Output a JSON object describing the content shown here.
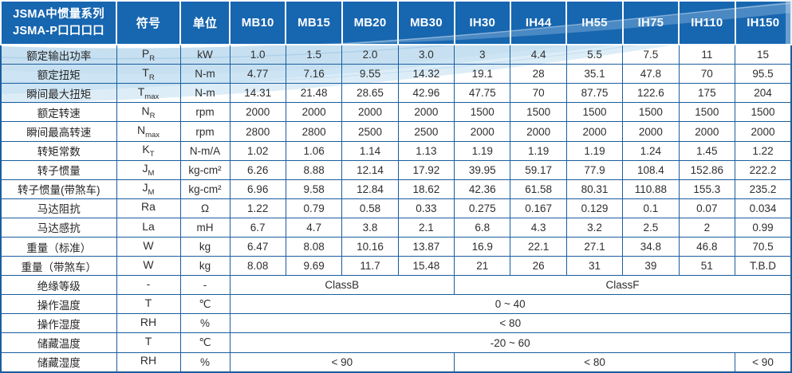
{
  "table": {
    "title_line1": "JSMA中惯量系列",
    "title_line2": "JSMA-P口口口口",
    "col_symbol": "符号",
    "col_unit": "单位",
    "models": [
      "MB10",
      "MB15",
      "MB20",
      "MB30",
      "IH30",
      "IH44",
      "IH55",
      "IH75",
      "IH110",
      "IH150"
    ],
    "rows": [
      {
        "label": "额定输出功率",
        "sym": "P",
        "sub": "R",
        "unit": "kW",
        "values": [
          "1.0",
          "1.5",
          "2.0",
          "3.0",
          "3",
          "4.4",
          "5.5",
          "7.5",
          "11",
          "15"
        ]
      },
      {
        "label": "额定扭矩",
        "sym": "T",
        "sub": "R",
        "unit": "N-m",
        "values": [
          "4.77",
          "7.16",
          "9.55",
          "14.32",
          "19.1",
          "28",
          "35.1",
          "47.8",
          "70",
          "95.5"
        ]
      },
      {
        "label": "瞬间最大扭矩",
        "sym": "T",
        "sub": "max",
        "unit": "N-m",
        "values": [
          "14.31",
          "21.48",
          "28.65",
          "42.96",
          "47.75",
          "70",
          "87.75",
          "122.6",
          "175",
          "204"
        ]
      },
      {
        "label": "额定转速",
        "sym": "N",
        "sub": "R",
        "unit": "rpm",
        "values": [
          "2000",
          "2000",
          "2000",
          "2000",
          "1500",
          "1500",
          "1500",
          "1500",
          "1500",
          "1500"
        ]
      },
      {
        "label": "瞬间最高转速",
        "sym": "N",
        "sub": "max",
        "unit": "rpm",
        "values": [
          "2800",
          "2800",
          "2500",
          "2500",
          "2000",
          "2000",
          "2000",
          "2000",
          "2000",
          "2000"
        ]
      },
      {
        "label": "转矩常数",
        "sym": "K",
        "sub": "T",
        "unit": "N-m/A",
        "values": [
          "1.02",
          "1.06",
          "1.14",
          "1.13",
          "1.19",
          "1.19",
          "1.19",
          "1.24",
          "1.45",
          "1.22"
        ]
      },
      {
        "label": "转子惯量",
        "sym": "J",
        "sub": "M",
        "unit": "kg-cm²",
        "values": [
          "6.26",
          "8.88",
          "12.14",
          "17.92",
          "39.95",
          "59.17",
          "77.9",
          "108.4",
          "152.86",
          "222.2"
        ]
      },
      {
        "label": "转子惯量(带煞车)",
        "sym": "J",
        "sub": "M",
        "unit": "kg-cm²",
        "values": [
          "6.96",
          "9.58",
          "12.84",
          "18.62",
          "42.36",
          "61.58",
          "80.31",
          "110.88",
          "155.3",
          "235.2"
        ]
      },
      {
        "label": "马达阻抗",
        "sym": "Ra",
        "sub": "",
        "unit": "Ω",
        "values": [
          "1.22",
          "0.79",
          "0.58",
          "0.33",
          "0.275",
          "0.167",
          "0.129",
          "0.1",
          "0.07",
          "0.034"
        ]
      },
      {
        "label": "马达感抗",
        "sym": "La",
        "sub": "",
        "unit": "mH",
        "values": [
          "6.7",
          "4.7",
          "3.8",
          "2.1",
          "6.8",
          "4.3",
          "3.2",
          "2.5",
          "2",
          "0.99"
        ]
      },
      {
        "label": "重量（标准）",
        "sym": "W",
        "sub": "",
        "unit": "kg",
        "values": [
          "6.47",
          "8.08",
          "10.16",
          "13.87",
          "16.9",
          "22.1",
          "27.1",
          "34.8",
          "46.8",
          "70.5"
        ]
      },
      {
        "label": "重量（带煞车）",
        "sym": "W",
        "sub": "",
        "unit": "kg",
        "values": [
          "8.08",
          "9.69",
          "11.7",
          "15.48",
          "21",
          "26",
          "31",
          "39",
          "51",
          "T.B.D"
        ]
      },
      {
        "label": "绝缘等级",
        "sym": "-",
        "sub": "",
        "unit": "-",
        "merged": [
          {
            "text": "ClassB",
            "span": 4
          },
          {
            "text": "ClassF",
            "span": 6
          }
        ]
      },
      {
        "label": "操作温度",
        "sym": "T",
        "sub": "",
        "unit": "℃",
        "merged": [
          {
            "text": "0 ~ 40",
            "span": 10
          }
        ]
      },
      {
        "label": "操作湿度",
        "sym": "RH",
        "sub": "",
        "unit": "%",
        "merged": [
          {
            "text": "< 80",
            "span": 10
          }
        ]
      },
      {
        "label": "储藏温度",
        "sym": "T",
        "sub": "",
        "unit": "℃",
        "merged": [
          {
            "text": "-20 ~ 60",
            "span": 10
          }
        ]
      },
      {
        "label": "储藏湿度",
        "sym": "RH",
        "sub": "",
        "unit": "%",
        "merged": [
          {
            "text": "< 90",
            "span": 4
          },
          {
            "text": "< 80",
            "span": 5
          },
          {
            "text": "< 90",
            "span": 1
          }
        ]
      }
    ],
    "colors": {
      "header_bg": "#1766b0",
      "header_text": "#ffffff",
      "grid_border": "#1a5d9e",
      "wave_blue": "#b9d8ee",
      "wave_light": "#cfe5f4",
      "cell_text": "#2e2e2e"
    }
  }
}
